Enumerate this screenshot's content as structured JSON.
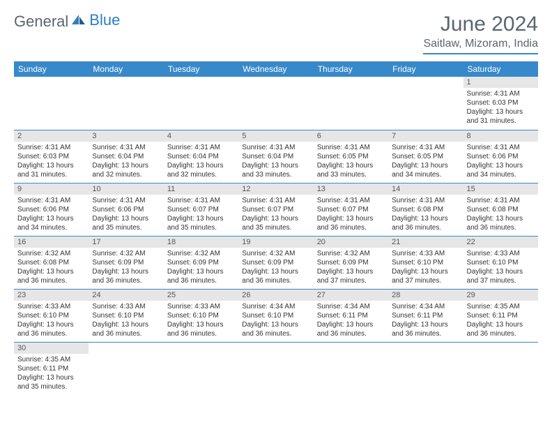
{
  "logo": {
    "text1": "General",
    "text2": "Blue"
  },
  "title": "June 2024",
  "location": "Saitlaw, Mizoram, India",
  "colors": {
    "header_bg": "#3789c9",
    "header_fg": "#ffffff",
    "daynum_bg": "#e6e6e6",
    "border": "#3789c9",
    "text_muted": "#5a6570"
  },
  "day_headers": [
    "Sunday",
    "Monday",
    "Tuesday",
    "Wednesday",
    "Thursday",
    "Friday",
    "Saturday"
  ],
  "weeks": [
    [
      null,
      null,
      null,
      null,
      null,
      null,
      {
        "n": "1",
        "sr": "Sunrise: 4:31 AM",
        "ss": "Sunset: 6:03 PM",
        "dl": "Daylight: 13 hours and 31 minutes."
      }
    ],
    [
      {
        "n": "2",
        "sr": "Sunrise: 4:31 AM",
        "ss": "Sunset: 6:03 PM",
        "dl": "Daylight: 13 hours and 31 minutes."
      },
      {
        "n": "3",
        "sr": "Sunrise: 4:31 AM",
        "ss": "Sunset: 6:04 PM",
        "dl": "Daylight: 13 hours and 32 minutes."
      },
      {
        "n": "4",
        "sr": "Sunrise: 4:31 AM",
        "ss": "Sunset: 6:04 PM",
        "dl": "Daylight: 13 hours and 32 minutes."
      },
      {
        "n": "5",
        "sr": "Sunrise: 4:31 AM",
        "ss": "Sunset: 6:04 PM",
        "dl": "Daylight: 13 hours and 33 minutes."
      },
      {
        "n": "6",
        "sr": "Sunrise: 4:31 AM",
        "ss": "Sunset: 6:05 PM",
        "dl": "Daylight: 13 hours and 33 minutes."
      },
      {
        "n": "7",
        "sr": "Sunrise: 4:31 AM",
        "ss": "Sunset: 6:05 PM",
        "dl": "Daylight: 13 hours and 34 minutes."
      },
      {
        "n": "8",
        "sr": "Sunrise: 4:31 AM",
        "ss": "Sunset: 6:06 PM",
        "dl": "Daylight: 13 hours and 34 minutes."
      }
    ],
    [
      {
        "n": "9",
        "sr": "Sunrise: 4:31 AM",
        "ss": "Sunset: 6:06 PM",
        "dl": "Daylight: 13 hours and 34 minutes."
      },
      {
        "n": "10",
        "sr": "Sunrise: 4:31 AM",
        "ss": "Sunset: 6:06 PM",
        "dl": "Daylight: 13 hours and 35 minutes."
      },
      {
        "n": "11",
        "sr": "Sunrise: 4:31 AM",
        "ss": "Sunset: 6:07 PM",
        "dl": "Daylight: 13 hours and 35 minutes."
      },
      {
        "n": "12",
        "sr": "Sunrise: 4:31 AM",
        "ss": "Sunset: 6:07 PM",
        "dl": "Daylight: 13 hours and 35 minutes."
      },
      {
        "n": "13",
        "sr": "Sunrise: 4:31 AM",
        "ss": "Sunset: 6:07 PM",
        "dl": "Daylight: 13 hours and 36 minutes."
      },
      {
        "n": "14",
        "sr": "Sunrise: 4:31 AM",
        "ss": "Sunset: 6:08 PM",
        "dl": "Daylight: 13 hours and 36 minutes."
      },
      {
        "n": "15",
        "sr": "Sunrise: 4:31 AM",
        "ss": "Sunset: 6:08 PM",
        "dl": "Daylight: 13 hours and 36 minutes."
      }
    ],
    [
      {
        "n": "16",
        "sr": "Sunrise: 4:32 AM",
        "ss": "Sunset: 6:08 PM",
        "dl": "Daylight: 13 hours and 36 minutes."
      },
      {
        "n": "17",
        "sr": "Sunrise: 4:32 AM",
        "ss": "Sunset: 6:09 PM",
        "dl": "Daylight: 13 hours and 36 minutes."
      },
      {
        "n": "18",
        "sr": "Sunrise: 4:32 AM",
        "ss": "Sunset: 6:09 PM",
        "dl": "Daylight: 13 hours and 36 minutes."
      },
      {
        "n": "19",
        "sr": "Sunrise: 4:32 AM",
        "ss": "Sunset: 6:09 PM",
        "dl": "Daylight: 13 hours and 36 minutes."
      },
      {
        "n": "20",
        "sr": "Sunrise: 4:32 AM",
        "ss": "Sunset: 6:09 PM",
        "dl": "Daylight: 13 hours and 37 minutes."
      },
      {
        "n": "21",
        "sr": "Sunrise: 4:33 AM",
        "ss": "Sunset: 6:10 PM",
        "dl": "Daylight: 13 hours and 37 minutes."
      },
      {
        "n": "22",
        "sr": "Sunrise: 4:33 AM",
        "ss": "Sunset: 6:10 PM",
        "dl": "Daylight: 13 hours and 37 minutes."
      }
    ],
    [
      {
        "n": "23",
        "sr": "Sunrise: 4:33 AM",
        "ss": "Sunset: 6:10 PM",
        "dl": "Daylight: 13 hours and 36 minutes."
      },
      {
        "n": "24",
        "sr": "Sunrise: 4:33 AM",
        "ss": "Sunset: 6:10 PM",
        "dl": "Daylight: 13 hours and 36 minutes."
      },
      {
        "n": "25",
        "sr": "Sunrise: 4:33 AM",
        "ss": "Sunset: 6:10 PM",
        "dl": "Daylight: 13 hours and 36 minutes."
      },
      {
        "n": "26",
        "sr": "Sunrise: 4:34 AM",
        "ss": "Sunset: 6:10 PM",
        "dl": "Daylight: 13 hours and 36 minutes."
      },
      {
        "n": "27",
        "sr": "Sunrise: 4:34 AM",
        "ss": "Sunset: 6:11 PM",
        "dl": "Daylight: 13 hours and 36 minutes."
      },
      {
        "n": "28",
        "sr": "Sunrise: 4:34 AM",
        "ss": "Sunset: 6:11 PM",
        "dl": "Daylight: 13 hours and 36 minutes."
      },
      {
        "n": "29",
        "sr": "Sunrise: 4:35 AM",
        "ss": "Sunset: 6:11 PM",
        "dl": "Daylight: 13 hours and 36 minutes."
      }
    ],
    [
      {
        "n": "30",
        "sr": "Sunrise: 4:35 AM",
        "ss": "Sunset: 6:11 PM",
        "dl": "Daylight: 13 hours and 35 minutes."
      },
      null,
      null,
      null,
      null,
      null,
      null
    ]
  ]
}
